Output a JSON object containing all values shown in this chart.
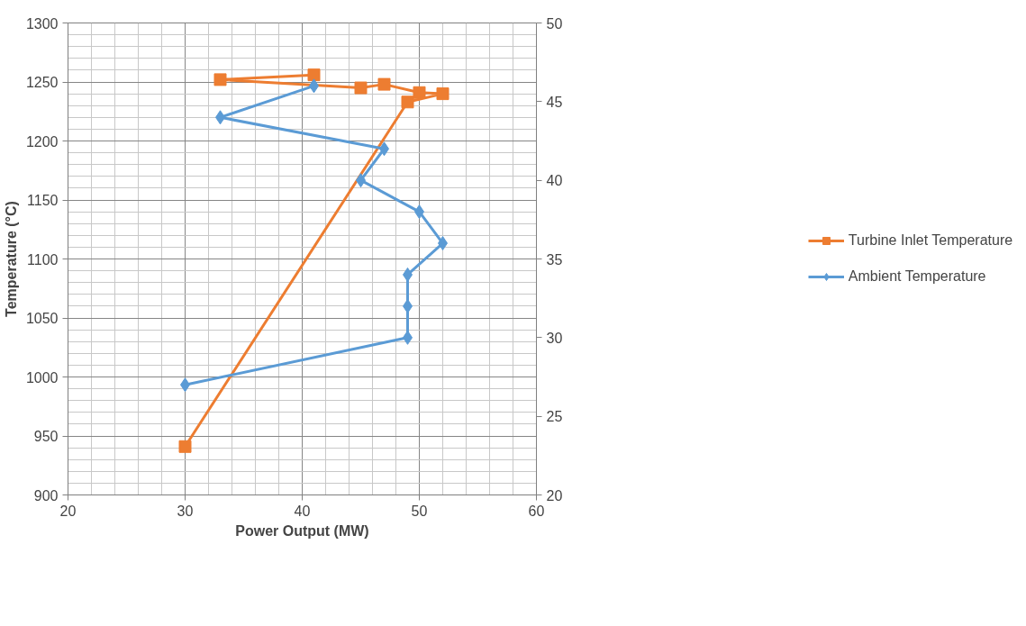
{
  "chart_data": {
    "type": "line",
    "xlabel": "Power Output (MW)",
    "ylabel": "Temperature (°C)",
    "xlim": [
      20,
      60
    ],
    "xticks": [
      20,
      30,
      40,
      50,
      60
    ],
    "ylim": [
      900,
      1300
    ],
    "yticks": [
      900,
      950,
      1000,
      1050,
      1100,
      1150,
      1200,
      1250,
      1300
    ],
    "y2lim": [
      20,
      50
    ],
    "y2ticks": [
      20,
      25,
      30,
      35,
      40,
      45,
      50
    ],
    "grid": true,
    "legend": "right",
    "line_style": "solid",
    "series": [
      {
        "name": "Turbine Inlet Temperature",
        "color": "#ed7d31",
        "marker": "square",
        "x": [
          30,
          49,
          52,
          50,
          47,
          45,
          33,
          41
        ],
        "values": [
          941,
          1233,
          1240,
          1241,
          1248,
          1245,
          1252,
          1256
        ]
      },
      {
        "name": "Ambient Temperature",
        "color": "#5b9bd5",
        "marker": "diamond",
        "axis": "y2",
        "x": [
          30,
          49,
          49,
          49,
          52,
          50,
          45,
          47,
          33,
          41
        ],
        "values": [
          27,
          30,
          32,
          34,
          36,
          38,
          40,
          42,
          44,
          46
        ]
      }
    ]
  }
}
